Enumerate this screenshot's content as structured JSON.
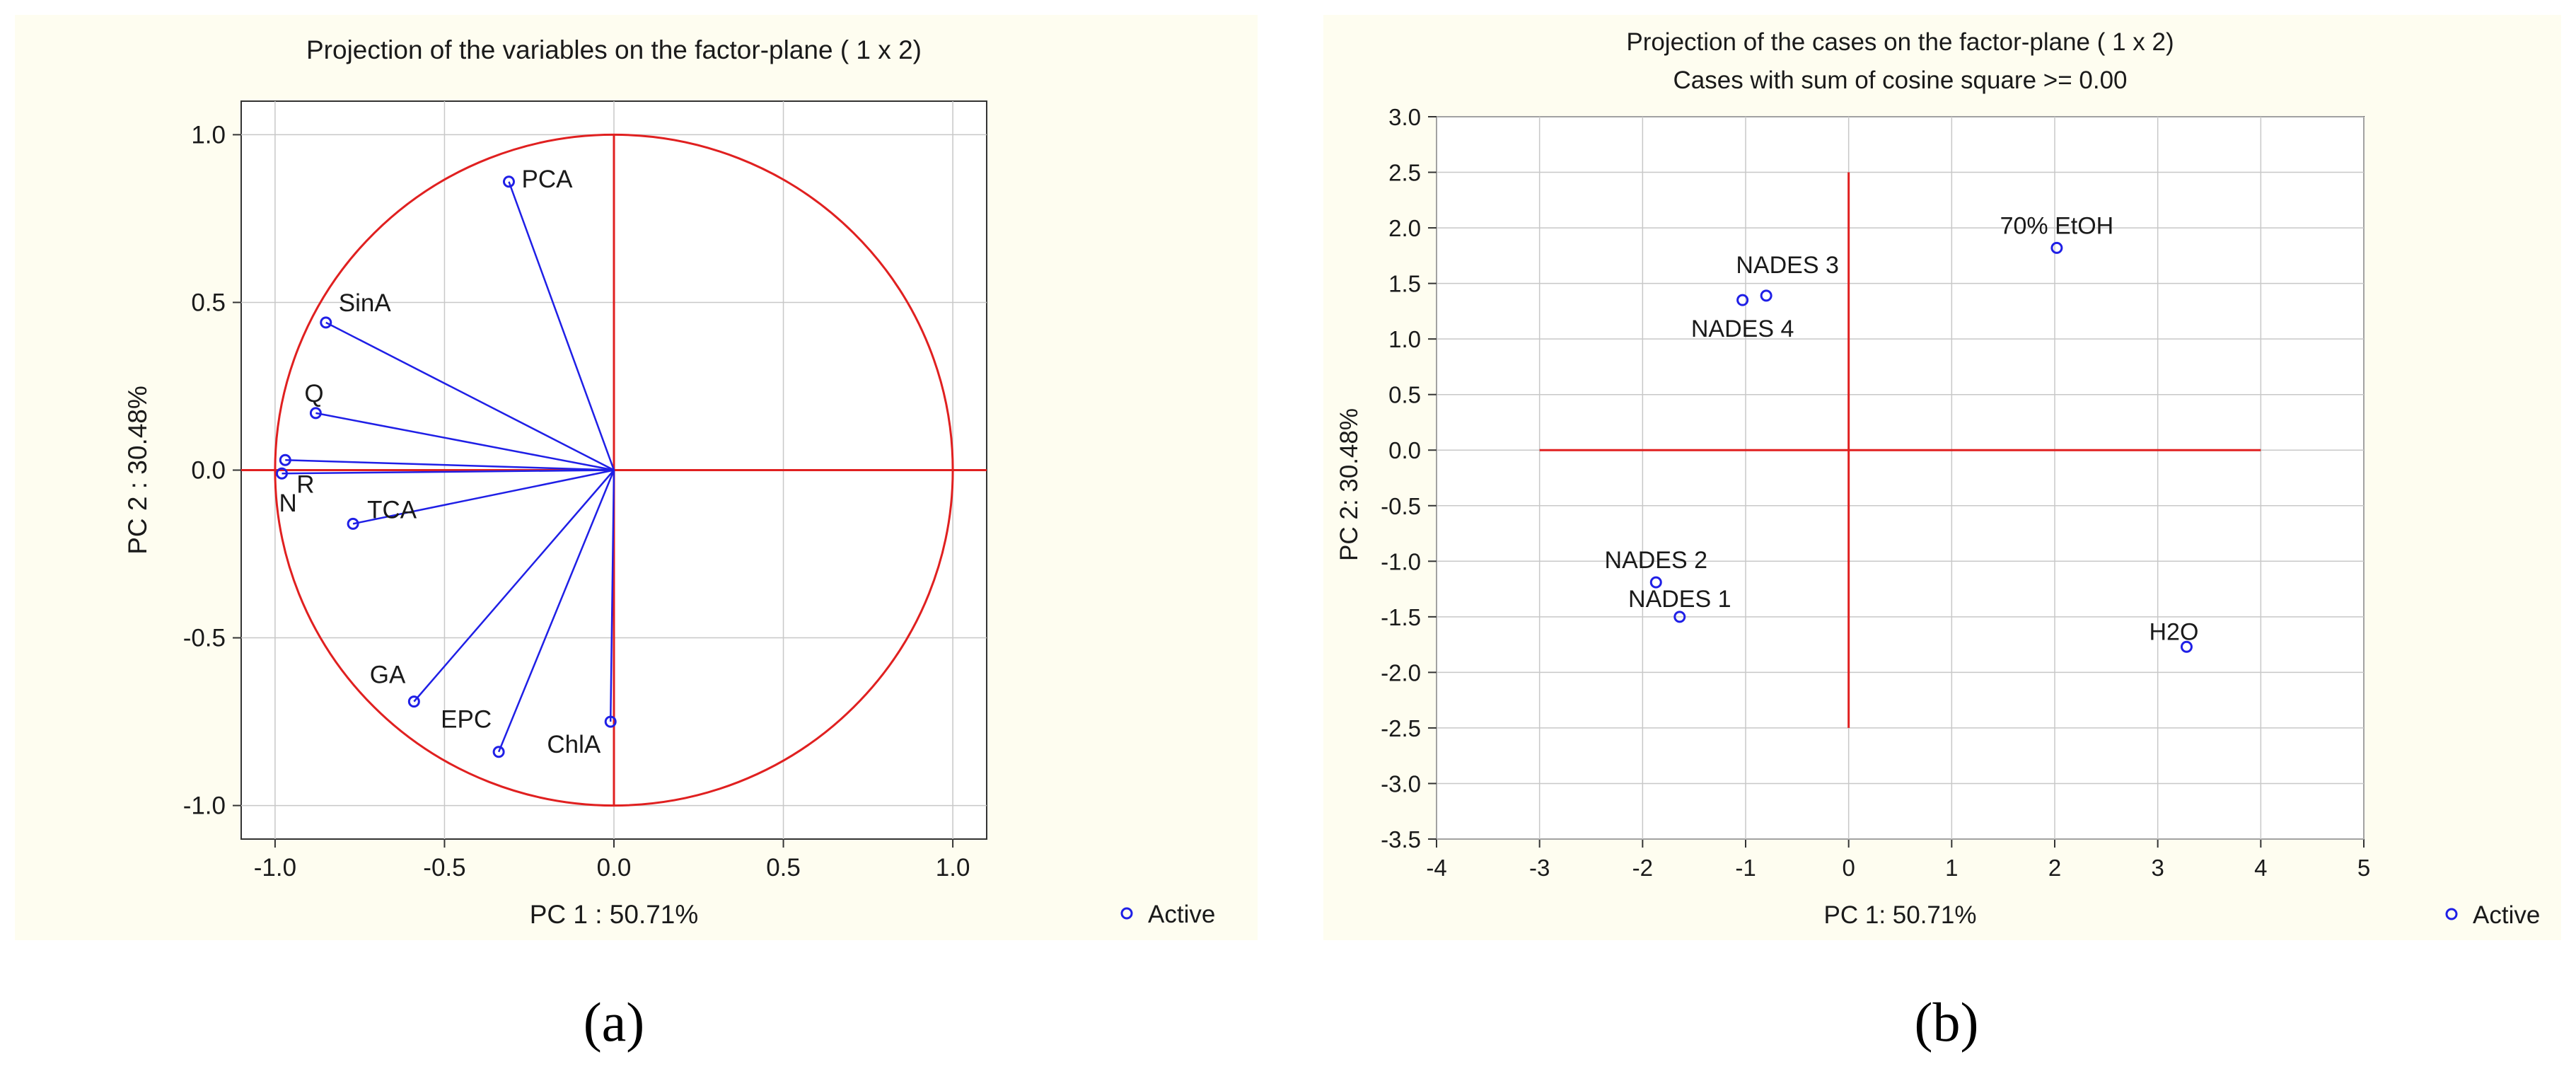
{
  "captions": {
    "a": "(a)",
    "b": "(b)"
  },
  "colors": {
    "panel_bg": "#fefdf0",
    "axis": "#e02020",
    "vector": "#1f1fe6",
    "marker": "#1f1fe6",
    "grid": "#c8c8c8",
    "text": "#1a1a1a"
  },
  "chart_data": [
    {
      "type": "scatter",
      "title": "Projection of the variables on the factor-plane (  1 x   2)",
      "xlabel": "PC 1 : 50.71%",
      "ylabel": "PC 2 : 30.48%",
      "xlim": [
        -1.1,
        1.1
      ],
      "ylim": [
        -1.1,
        1.1
      ],
      "xticks": [
        "-1.0",
        "-0.5",
        "0.0",
        "0.5",
        "1.0"
      ],
      "yticks": [
        "1.0",
        "0.5",
        "0.0",
        "-0.5",
        "-1.0"
      ],
      "xtick_values": [
        -1.0,
        -0.5,
        0.0,
        0.5,
        1.0
      ],
      "ytick_values": [
        1.0,
        0.5,
        0.0,
        -0.5,
        -1.0
      ],
      "unit_circle": true,
      "vectors_from_origin": true,
      "grid": true,
      "legend": {
        "label": "Active",
        "placement": "bottom-right"
      },
      "points": [
        {
          "label": "PCA",
          "x": -0.31,
          "y": 0.86
        },
        {
          "label": "SinA",
          "x": -0.85,
          "y": 0.44
        },
        {
          "label": "Q",
          "x": -0.88,
          "y": 0.17
        },
        {
          "label": "R",
          "x": -0.97,
          "y": 0.03
        },
        {
          "label": "N",
          "x": -0.98,
          "y": -0.01
        },
        {
          "label": "TCA",
          "x": -0.77,
          "y": -0.16
        },
        {
          "label": "GA",
          "x": -0.59,
          "y": -0.69
        },
        {
          "label": "EPC",
          "x": -0.34,
          "y": -0.84
        },
        {
          "label": "ChlA",
          "x": -0.01,
          "y": -0.75
        }
      ]
    },
    {
      "type": "scatter",
      "title": "Projection of the cases on the factor-plane (  1 x   2)",
      "subtitle": "Cases with sum of cosine square >=  0.00",
      "xlabel": "PC 1: 50.71%",
      "ylabel": "PC 2: 30.48%",
      "xlim": [
        -4,
        5
      ],
      "ylim": [
        -3.5,
        3.0
      ],
      "xticks": [
        "-4",
        "-3",
        "-2",
        "-1",
        "0",
        "1",
        "2",
        "3",
        "4",
        "5"
      ],
      "yticks": [
        "3.0",
        "2.5",
        "2.0",
        "1.5",
        "1.0",
        "0.5",
        "0.0",
        "-0.5",
        "-1.0",
        "-1.5",
        "-2.0",
        "-2.5",
        "-3.0",
        "-3.5"
      ],
      "xtick_values": [
        -4,
        -3,
        -2,
        -1,
        0,
        1,
        2,
        3,
        4,
        5
      ],
      "ytick_values": [
        3.0,
        2.5,
        2.0,
        1.5,
        1.0,
        0.5,
        0.0,
        -0.5,
        -1.0,
        -1.5,
        -2.0,
        -2.5,
        -3.0,
        -3.5
      ],
      "reference_lines": {
        "horizontal_x": [
          -3,
          4
        ],
        "vertical_y": [
          -2.5,
          2.5
        ]
      },
      "grid": true,
      "legend": {
        "label": "Active",
        "placement": "bottom-right"
      },
      "points": [
        {
          "label": "70% EtOH",
          "x": 2.02,
          "y": 1.82
        },
        {
          "label": "NADES 3",
          "x": -0.8,
          "y": 1.39
        },
        {
          "label": "NADES 4",
          "x": -1.03,
          "y": 1.35
        },
        {
          "label": "NADES 2",
          "x": -1.87,
          "y": -1.19
        },
        {
          "label": "NADES 1",
          "x": -1.64,
          "y": -1.5
        },
        {
          "label": "H2O",
          "x": 3.28,
          "y": -1.77
        }
      ]
    }
  ]
}
